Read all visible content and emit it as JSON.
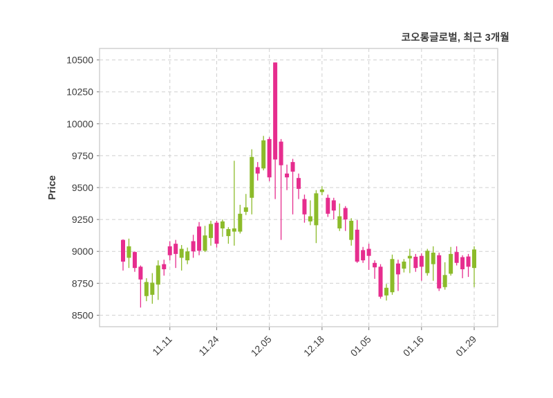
{
  "title": "코오롱글로벌, 최근 3개월",
  "y_axis": {
    "label": "Price",
    "ticks": [
      8500,
      8750,
      9000,
      9250,
      9500,
      9750,
      10000,
      10250,
      10500
    ],
    "min": 8410,
    "max": 10590
  },
  "x_axis": {
    "tick_labels": [
      "11.11",
      "11.24",
      "12.05",
      "12.18",
      "01.05",
      "01.16",
      "01.29"
    ],
    "tick_candle_indices": [
      8,
      16,
      25,
      34,
      42,
      51,
      60
    ]
  },
  "chart_data": {
    "type": "candlestick",
    "title": "코오롱글로벌, 최근 3개월",
    "ylabel": "Price",
    "ylim": [
      8410,
      10590
    ],
    "grid": "dashed",
    "up_color": "#e62d8e",
    "down_color": "#8cbb2a",
    "candles_ohlc": [
      [
        8920,
        9095,
        8850,
        9090
      ],
      [
        9040,
        9100,
        8870,
        8950
      ],
      [
        8870,
        9000,
        8840,
        8995
      ],
      [
        8780,
        8890,
        8560,
        8880
      ],
      [
        8760,
        8790,
        8610,
        8650
      ],
      [
        8755,
        8830,
        8590,
        8660
      ],
      [
        8890,
        8930,
        8620,
        8740
      ],
      [
        8860,
        8935,
        8810,
        8900
      ],
      [
        8970,
        9080,
        8930,
        9040
      ],
      [
        8980,
        9090,
        8870,
        9060
      ],
      [
        9020,
        9050,
        8850,
        8950
      ],
      [
        9000,
        9030,
        8900,
        8930
      ],
      [
        9000,
        9130,
        8950,
        9080
      ],
      [
        9005,
        9230,
        8970,
        9195
      ],
      [
        9125,
        9200,
        8995,
        9005
      ],
      [
        9215,
        9240,
        9045,
        9105
      ],
      [
        9060,
        9240,
        9030,
        9225
      ],
      [
        9235,
        9250,
        9115,
        9180
      ],
      [
        9175,
        9190,
        9060,
        9120
      ],
      [
        9180,
        9710,
        9045,
        9155
      ],
      [
        9295,
        9365,
        9140,
        9155
      ],
      [
        9345,
        9450,
        9285,
        9310
      ],
      [
        9740,
        9800,
        9290,
        9420
      ],
      [
        9610,
        9700,
        9555,
        9660
      ],
      [
        9870,
        9905,
        9635,
        9650
      ],
      [
        9580,
        9895,
        9550,
        9880
      ],
      [
        9720,
        10480,
        9410,
        10480
      ],
      [
        9675,
        9880,
        9090,
        9860
      ],
      [
        9580,
        9680,
        9480,
        9610
      ],
      [
        9625,
        9725,
        9290,
        9700
      ],
      [
        9490,
        9610,
        9410,
        9575
      ],
      [
        9290,
        9445,
        9225,
        9410
      ],
      [
        9275,
        9400,
        9205,
        9235
      ],
      [
        9455,
        9480,
        9065,
        9205
      ],
      [
        9485,
        9510,
        9440,
        9465
      ],
      [
        9295,
        9445,
        9270,
        9420
      ],
      [
        9320,
        9420,
        9250,
        9400
      ],
      [
        9275,
        9375,
        9160,
        9180
      ],
      [
        9250,
        9355,
        9160,
        9340
      ],
      [
        9240,
        9260,
        9045,
        9090
      ],
      [
        8920,
        9245,
        8910,
        9170
      ],
      [
        8930,
        9035,
        8910,
        9010
      ],
      [
        8965,
        9060,
        8855,
        9020
      ],
      [
        8875,
        8930,
        8785,
        8910
      ],
      [
        8645,
        8900,
        8630,
        8880
      ],
      [
        8715,
        8745,
        8615,
        8655
      ],
      [
        8940,
        8975,
        8660,
        8680
      ],
      [
        8820,
        8935,
        8690,
        8905
      ],
      [
        8920,
        8940,
        8835,
        8865
      ],
      [
        8965,
        9020,
        8830,
        8945
      ],
      [
        8870,
        8980,
        8840,
        8958
      ],
      [
        8880,
        8985,
        8770,
        8965
      ],
      [
        9005,
        9020,
        8810,
        8830
      ],
      [
        8990,
        9040,
        8770,
        8900
      ],
      [
        8710,
        8990,
        8690,
        8970
      ],
      [
        8815,
        8915,
        8700,
        8720
      ],
      [
        8980,
        9035,
        8810,
        8825
      ],
      [
        8910,
        9040,
        8890,
        8995
      ],
      [
        8860,
        8970,
        8790,
        8955
      ],
      [
        8880,
        8980,
        8800,
        8960
      ],
      [
        9015,
        9040,
        8720,
        8870
      ]
    ]
  }
}
